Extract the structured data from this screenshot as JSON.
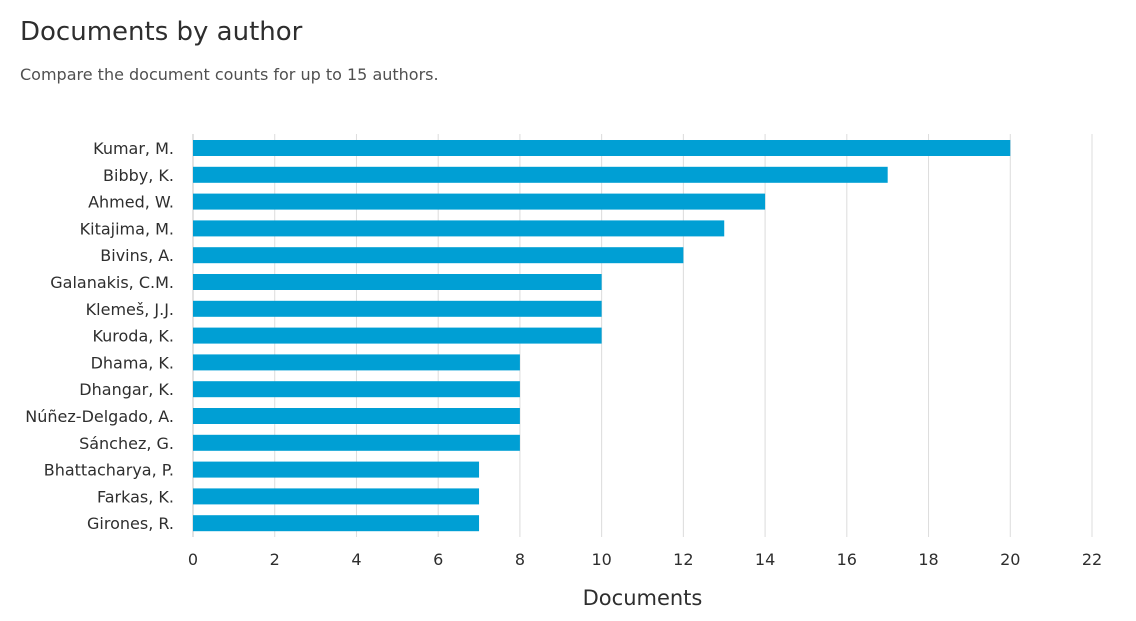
{
  "header": {
    "title": "Documents by author",
    "subtitle": "Compare the document counts for up to 15 authors."
  },
  "chart_data": {
    "type": "bar",
    "orientation": "horizontal",
    "title": "Documents by author",
    "subtitle": "Compare the document counts for up to 15 authors.",
    "xlabel": "Documents",
    "ylabel": "",
    "categories": [
      "Kumar, M.",
      "Bibby, K.",
      "Ahmed, W.",
      "Kitajima, M.",
      "Bivins, A.",
      "Galanakis, C.M.",
      "Klemeš, J.J.",
      "Kuroda, K.",
      "Dhama, K.",
      "Dhangar, K.",
      "Núñez-Delgado, A.",
      "Sánchez, G.",
      "Bhattacharya, P.",
      "Farkas, K.",
      "Girones, R."
    ],
    "values": [
      20,
      17,
      14,
      13,
      12,
      10,
      10,
      10,
      8,
      8,
      8,
      8,
      7,
      7,
      7
    ],
    "xlim": [
      0,
      22
    ],
    "xticks": [
      0,
      2,
      4,
      6,
      8,
      10,
      12,
      14,
      16,
      18,
      20,
      22
    ],
    "grid": "vertical",
    "legend": "none",
    "bar_color": "#009fd4",
    "grid_color": "#dcdcdc"
  }
}
